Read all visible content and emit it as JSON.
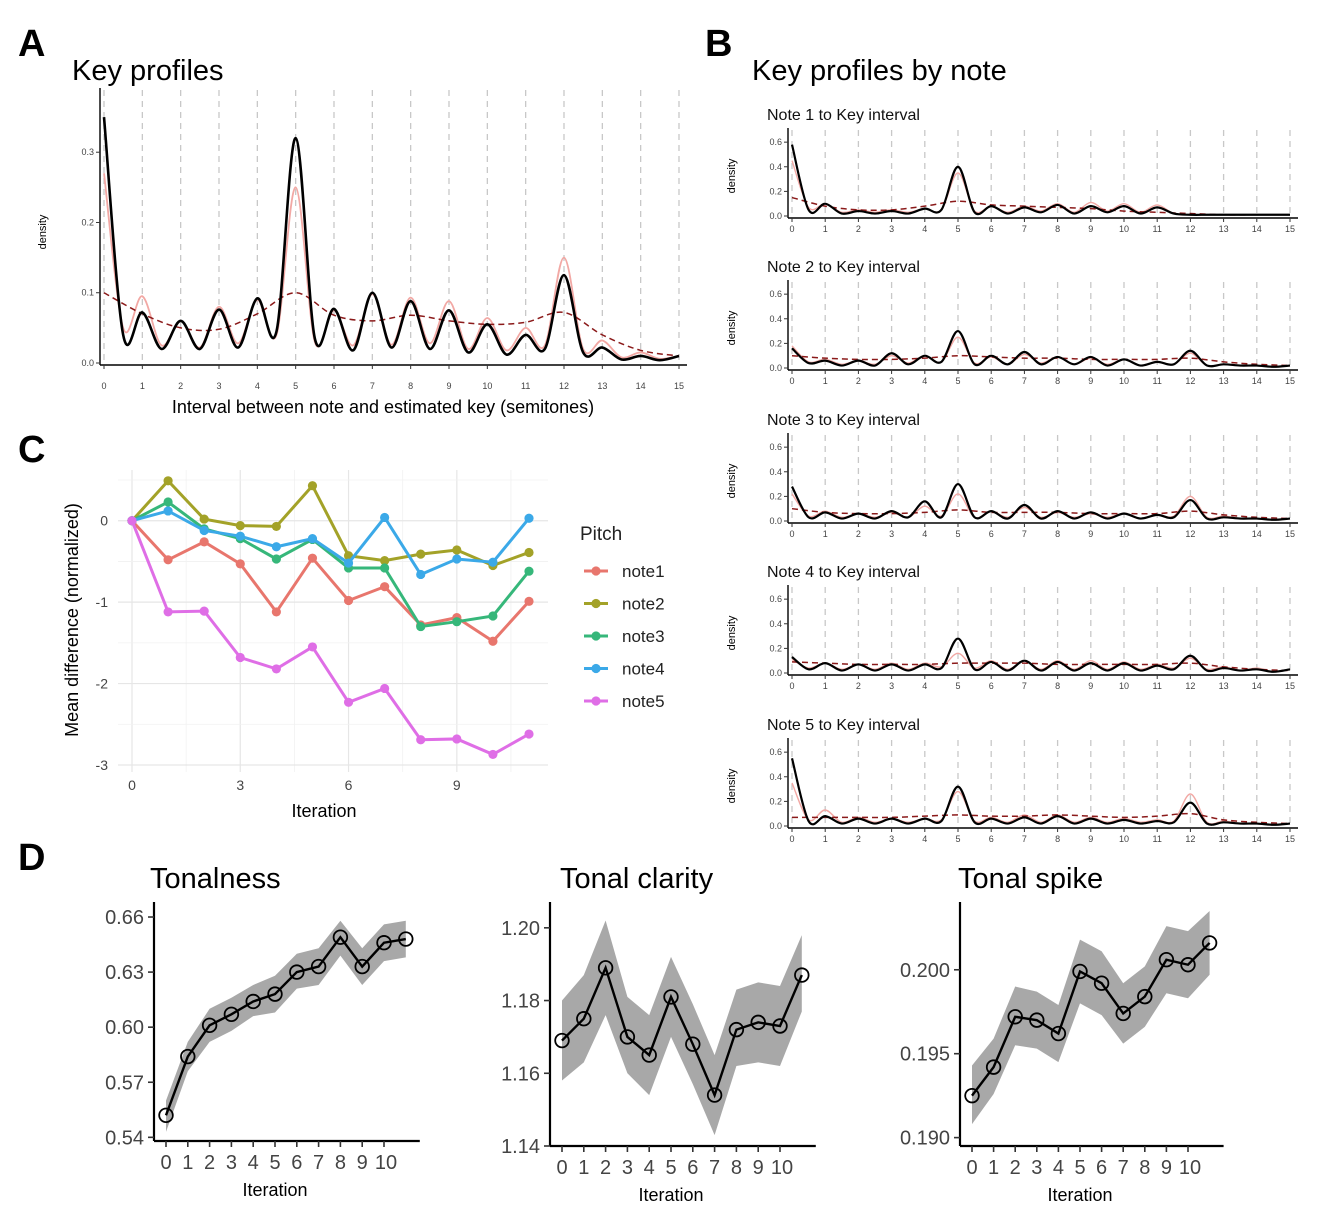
{
  "figure": {
    "letters": [
      "A",
      "B",
      "C",
      "D"
    ]
  },
  "chart_data": [
    {
      "id": "A",
      "type": "line",
      "title": "Key profiles",
      "xlabel": "Interval between note and estimated key (semitones)",
      "ylabel": "density",
      "xlim": [
        0,
        15
      ],
      "ylim": [
        0,
        0.38
      ],
      "xticks": [
        "0",
        "1",
        "2",
        "3",
        "4",
        "5",
        "6",
        "7",
        "8",
        "9",
        "10",
        "11",
        "12",
        "13",
        "14",
        "15"
      ],
      "yticks": [
        "0.0",
        "0.1",
        "0.2",
        "0.3"
      ],
      "grid": "dashed vertical at integers",
      "colors": {
        "black": "#000000",
        "pink": "#f2a8a4",
        "dashed": "#8b1a1a"
      },
      "series": [
        {
          "style": "solid-black",
          "x": [
            0,
            0.5,
            1,
            1.5,
            2,
            2.5,
            3,
            3.5,
            4,
            4.5,
            5,
            5.5,
            6,
            6.5,
            7,
            7.5,
            8,
            8.5,
            9,
            9.5,
            10,
            10.5,
            11,
            11.5,
            12,
            12.5,
            13,
            13.5,
            14,
            14.5,
            15
          ],
          "values": [
            0.35,
            0.04,
            0.072,
            0.02,
            0.06,
            0.02,
            0.076,
            0.022,
            0.092,
            0.045,
            0.32,
            0.035,
            0.077,
            0.018,
            0.1,
            0.022,
            0.088,
            0.02,
            0.075,
            0.015,
            0.055,
            0.012,
            0.04,
            0.02,
            0.125,
            0.015,
            0.022,
            0.005,
            0.01,
            0.004,
            0.01
          ]
        },
        {
          "style": "solid-pink",
          "x": [
            0,
            0.5,
            1,
            1.5,
            2,
            2.5,
            3,
            3.5,
            4,
            4.5,
            5,
            5.5,
            6,
            6.5,
            7,
            7.5,
            8,
            8.5,
            9,
            9.5,
            10,
            10.5,
            11,
            11.5,
            12,
            12.5,
            13,
            13.5,
            14,
            14.5,
            15
          ],
          "values": [
            0.27,
            0.05,
            0.095,
            0.025,
            0.06,
            0.022,
            0.08,
            0.028,
            0.09,
            0.04,
            0.25,
            0.03,
            0.075,
            0.025,
            0.098,
            0.026,
            0.093,
            0.028,
            0.088,
            0.02,
            0.064,
            0.018,
            0.05,
            0.025,
            0.15,
            0.02,
            0.032,
            0.008,
            0.015,
            0.006,
            0.01
          ]
        },
        {
          "style": "dashed-red",
          "x": [
            0,
            1,
            2,
            3,
            4,
            5,
            6,
            7,
            8,
            9,
            10,
            11,
            12,
            13,
            14,
            15
          ],
          "values": [
            0.1,
            0.07,
            0.05,
            0.048,
            0.07,
            0.1,
            0.068,
            0.06,
            0.068,
            0.06,
            0.055,
            0.058,
            0.072,
            0.04,
            0.018,
            0.01
          ]
        }
      ]
    },
    {
      "id": "B",
      "type": "line",
      "title": "Key profiles by note",
      "ylabel": "density",
      "xticks": [
        "0",
        "1",
        "2",
        "3",
        "4",
        "5",
        "6",
        "7",
        "8",
        "9",
        "10",
        "11",
        "12",
        "13",
        "14",
        "15"
      ],
      "yticks": [
        "0.0",
        "0.2",
        "0.4",
        "0.6"
      ],
      "ylim": [
        0,
        0.65
      ],
      "panels": [
        {
          "subtitle": "Note 1 to Key interval",
          "black": [
            0.58,
            0.05,
            0.1,
            0.02,
            0.04,
            0.02,
            0.04,
            0.02,
            0.06,
            0.05,
            0.4,
            0.03,
            0.08,
            0.02,
            0.07,
            0.03,
            0.09,
            0.02,
            0.08,
            0.03,
            0.08,
            0.02,
            0.07,
            0.02,
            0.01,
            0.01,
            0.01,
            0.01,
            0.01,
            0.01,
            0.01
          ],
          "pink": [
            0.45,
            0.07,
            0.1,
            0.03,
            0.05,
            0.03,
            0.05,
            0.03,
            0.06,
            0.05,
            0.35,
            0.04,
            0.08,
            0.03,
            0.08,
            0.04,
            0.1,
            0.03,
            0.11,
            0.04,
            0.1,
            0.03,
            0.09,
            0.02,
            0.01,
            0.01,
            0.01,
            0.01,
            0.01,
            0.01,
            0.01
          ],
          "dashed": [
            0.15,
            0.08,
            0.05,
            0.05,
            0.08,
            0.12,
            0.09,
            0.08,
            0.07,
            0.06,
            0.04,
            0.03,
            0.02,
            0.01,
            0.01,
            0.01
          ]
        },
        {
          "subtitle": "Note 2 to Key interval",
          "black": [
            0.16,
            0.04,
            0.06,
            0.02,
            0.06,
            0.02,
            0.12,
            0.03,
            0.1,
            0.05,
            0.3,
            0.03,
            0.1,
            0.03,
            0.13,
            0.03,
            0.09,
            0.03,
            0.09,
            0.02,
            0.07,
            0.02,
            0.05,
            0.03,
            0.14,
            0.02,
            0.03,
            0.02,
            0.02,
            0.01,
            0.02
          ],
          "pink": [
            0.18,
            0.05,
            0.07,
            0.03,
            0.06,
            0.03,
            0.1,
            0.04,
            0.1,
            0.05,
            0.25,
            0.04,
            0.09,
            0.03,
            0.11,
            0.04,
            0.09,
            0.03,
            0.08,
            0.03,
            0.07,
            0.02,
            0.05,
            0.03,
            0.12,
            0.02,
            0.03,
            0.02,
            0.02,
            0.01,
            0.02
          ],
          "dashed": [
            0.1,
            0.08,
            0.07,
            0.07,
            0.08,
            0.1,
            0.09,
            0.08,
            0.08,
            0.07,
            0.07,
            0.07,
            0.08,
            0.05,
            0.03,
            0.02
          ]
        },
        {
          "subtitle": "Note 3 to Key interval",
          "black": [
            0.28,
            0.03,
            0.07,
            0.02,
            0.06,
            0.02,
            0.08,
            0.03,
            0.16,
            0.03,
            0.3,
            0.03,
            0.08,
            0.02,
            0.13,
            0.02,
            0.08,
            0.02,
            0.07,
            0.02,
            0.06,
            0.02,
            0.05,
            0.03,
            0.17,
            0.02,
            0.03,
            0.02,
            0.02,
            0.01,
            0.02
          ],
          "pink": [
            0.22,
            0.04,
            0.08,
            0.03,
            0.06,
            0.03,
            0.07,
            0.03,
            0.12,
            0.04,
            0.22,
            0.03,
            0.08,
            0.03,
            0.11,
            0.03,
            0.07,
            0.03,
            0.06,
            0.03,
            0.06,
            0.02,
            0.05,
            0.04,
            0.2,
            0.03,
            0.04,
            0.02,
            0.02,
            0.01,
            0.02
          ],
          "dashed": [
            0.1,
            0.07,
            0.06,
            0.06,
            0.07,
            0.09,
            0.07,
            0.07,
            0.07,
            0.06,
            0.06,
            0.06,
            0.08,
            0.05,
            0.03,
            0.02
          ]
        },
        {
          "subtitle": "Note 4 to Key interval",
          "black": [
            0.13,
            0.03,
            0.08,
            0.02,
            0.07,
            0.02,
            0.07,
            0.02,
            0.07,
            0.04,
            0.28,
            0.03,
            0.09,
            0.02,
            0.1,
            0.02,
            0.09,
            0.02,
            0.08,
            0.02,
            0.08,
            0.02,
            0.06,
            0.03,
            0.14,
            0.02,
            0.04,
            0.02,
            0.03,
            0.01,
            0.03
          ],
          "pink": [
            0.11,
            0.04,
            0.08,
            0.03,
            0.07,
            0.03,
            0.08,
            0.03,
            0.08,
            0.05,
            0.16,
            0.04,
            0.1,
            0.03,
            0.1,
            0.03,
            0.1,
            0.03,
            0.1,
            0.03,
            0.09,
            0.03,
            0.07,
            0.04,
            0.12,
            0.03,
            0.05,
            0.02,
            0.04,
            0.01,
            0.03
          ],
          "dashed": [
            0.09,
            0.08,
            0.07,
            0.07,
            0.07,
            0.08,
            0.08,
            0.08,
            0.07,
            0.07,
            0.07,
            0.07,
            0.08,
            0.05,
            0.03,
            0.02
          ]
        },
        {
          "subtitle": "Note 5 to Key interval",
          "black": [
            0.55,
            0.04,
            0.08,
            0.02,
            0.06,
            0.02,
            0.06,
            0.02,
            0.06,
            0.04,
            0.32,
            0.03,
            0.06,
            0.02,
            0.07,
            0.02,
            0.08,
            0.02,
            0.06,
            0.02,
            0.05,
            0.02,
            0.04,
            0.03,
            0.19,
            0.02,
            0.03,
            0.02,
            0.02,
            0.01,
            0.02
          ],
          "pink": [
            0.35,
            0.05,
            0.13,
            0.03,
            0.07,
            0.03,
            0.06,
            0.03,
            0.06,
            0.05,
            0.28,
            0.04,
            0.07,
            0.03,
            0.09,
            0.03,
            0.09,
            0.03,
            0.07,
            0.03,
            0.06,
            0.03,
            0.05,
            0.04,
            0.26,
            0.03,
            0.04,
            0.02,
            0.02,
            0.01,
            0.02
          ],
          "dashed": [
            0.07,
            0.07,
            0.07,
            0.07,
            0.08,
            0.09,
            0.08,
            0.08,
            0.09,
            0.08,
            0.07,
            0.08,
            0.1,
            0.05,
            0.03,
            0.02
          ]
        }
      ]
    },
    {
      "id": "C",
      "type": "line",
      "xlabel": "Iteration",
      "ylabel": "Mean difference (normalized)",
      "xlim": [
        0,
        11
      ],
      "ylim": [
        -3,
        0.5
      ],
      "xticks": [
        0,
        3,
        6,
        9
      ],
      "yticks": [
        0,
        -1,
        -2,
        -3
      ],
      "legend": {
        "title": "Pitch",
        "position": "right"
      },
      "x": [
        0,
        1,
        2,
        3,
        4,
        5,
        6,
        7,
        8,
        9,
        10,
        11
      ],
      "series": [
        {
          "name": "note1",
          "color": "#e8766d",
          "values": [
            0,
            -0.48,
            -0.26,
            -0.53,
            -1.12,
            -0.46,
            -0.98,
            -0.81,
            -1.28,
            -1.19,
            -1.48,
            -0.99
          ]
        },
        {
          "name": "note2",
          "color": "#a3a228",
          "values": [
            0,
            0.49,
            0.02,
            -0.06,
            -0.07,
            0.43,
            -0.43,
            -0.49,
            -0.41,
            -0.36,
            -0.55,
            -0.39
          ]
        },
        {
          "name": "note3",
          "color": "#36b77a",
          "values": [
            0,
            0.23,
            -0.1,
            -0.22,
            -0.47,
            -0.23,
            -0.58,
            -0.58,
            -1.3,
            -1.24,
            -1.17,
            -0.62
          ]
        },
        {
          "name": "note4",
          "color": "#3ba9e8",
          "values": [
            0,
            0.12,
            -0.12,
            -0.19,
            -0.32,
            -0.22,
            -0.52,
            0.04,
            -0.66,
            -0.47,
            -0.51,
            0.03
          ]
        },
        {
          "name": "note5",
          "color": "#df6ee6",
          "values": [
            0,
            -1.12,
            -1.11,
            -1.68,
            -1.82,
            -1.55,
            -2.23,
            -2.06,
            -2.69,
            -2.68,
            -2.87,
            -2.62
          ]
        }
      ]
    },
    {
      "id": "D1",
      "type": "line",
      "title": "Tonalness",
      "xlabel": "Iteration",
      "xticks": [
        "0",
        "1",
        "2",
        "3",
        "4",
        "5",
        "6",
        "7",
        "8",
        "9",
        "10"
      ],
      "yticks": [
        "0.54",
        "0.57",
        "0.60",
        "0.63",
        "0.66"
      ],
      "ylim": [
        0.538,
        0.666
      ],
      "x": [
        0,
        1,
        2,
        3,
        4,
        5,
        6,
        7,
        8,
        9,
        10,
        11
      ],
      "values": [
        0.552,
        0.584,
        0.601,
        0.607,
        0.614,
        0.618,
        0.63,
        0.633,
        0.649,
        0.633,
        0.646,
        0.648
      ],
      "lower": [
        0.543,
        0.576,
        0.592,
        0.598,
        0.606,
        0.608,
        0.621,
        0.623,
        0.639,
        0.623,
        0.636,
        0.638
      ],
      "upper": [
        0.56,
        0.592,
        0.61,
        0.616,
        0.623,
        0.628,
        0.64,
        0.643,
        0.658,
        0.643,
        0.656,
        0.658
      ]
    },
    {
      "id": "D2",
      "type": "line",
      "title": "Tonal clarity",
      "xlabel": "Iteration",
      "xticks": [
        "0",
        "1",
        "2",
        "3",
        "4",
        "5",
        "6",
        "7",
        "8",
        "9",
        "10"
      ],
      "yticks": [
        "1.14",
        "1.16",
        "1.18",
        "1.20"
      ],
      "ylim": [
        1.14,
        1.206
      ],
      "x": [
        0,
        1,
        2,
        3,
        4,
        5,
        6,
        7,
        8,
        9,
        10,
        11
      ],
      "values": [
        1.169,
        1.175,
        1.189,
        1.17,
        1.165,
        1.181,
        1.168,
        1.154,
        1.172,
        1.174,
        1.173,
        1.187
      ],
      "lower": [
        1.158,
        1.163,
        1.176,
        1.16,
        1.154,
        1.17,
        1.157,
        1.143,
        1.162,
        1.163,
        1.162,
        1.177
      ],
      "upper": [
        1.18,
        1.187,
        1.202,
        1.181,
        1.176,
        1.192,
        1.179,
        1.165,
        1.183,
        1.185,
        1.184,
        1.198
      ]
    },
    {
      "id": "D3",
      "type": "line",
      "title": "Tonal spike",
      "xlabel": "Iteration",
      "xticks": [
        "0",
        "1",
        "2",
        "3",
        "4",
        "5",
        "6",
        "7",
        "8",
        "9",
        "10"
      ],
      "yticks": [
        "0.190",
        "0.195",
        "0.200"
      ],
      "ylim": [
        0.1895,
        0.2038
      ],
      "x": [
        0,
        1,
        2,
        3,
        4,
        5,
        6,
        7,
        8,
        9,
        10,
        11
      ],
      "values": [
        0.1925,
        0.1942,
        0.1972,
        0.197,
        0.1962,
        0.1999,
        0.1992,
        0.1974,
        0.1984,
        0.2006,
        0.2003,
        0.2016
      ],
      "lower": [
        0.1908,
        0.1926,
        0.1955,
        0.1953,
        0.1945,
        0.198,
        0.1973,
        0.1956,
        0.1966,
        0.1986,
        0.1983,
        0.1997
      ],
      "upper": [
        0.1943,
        0.1959,
        0.199,
        0.1987,
        0.1979,
        0.2018,
        0.2011,
        0.1992,
        0.2002,
        0.2026,
        0.2023,
        0.2035
      ]
    }
  ]
}
